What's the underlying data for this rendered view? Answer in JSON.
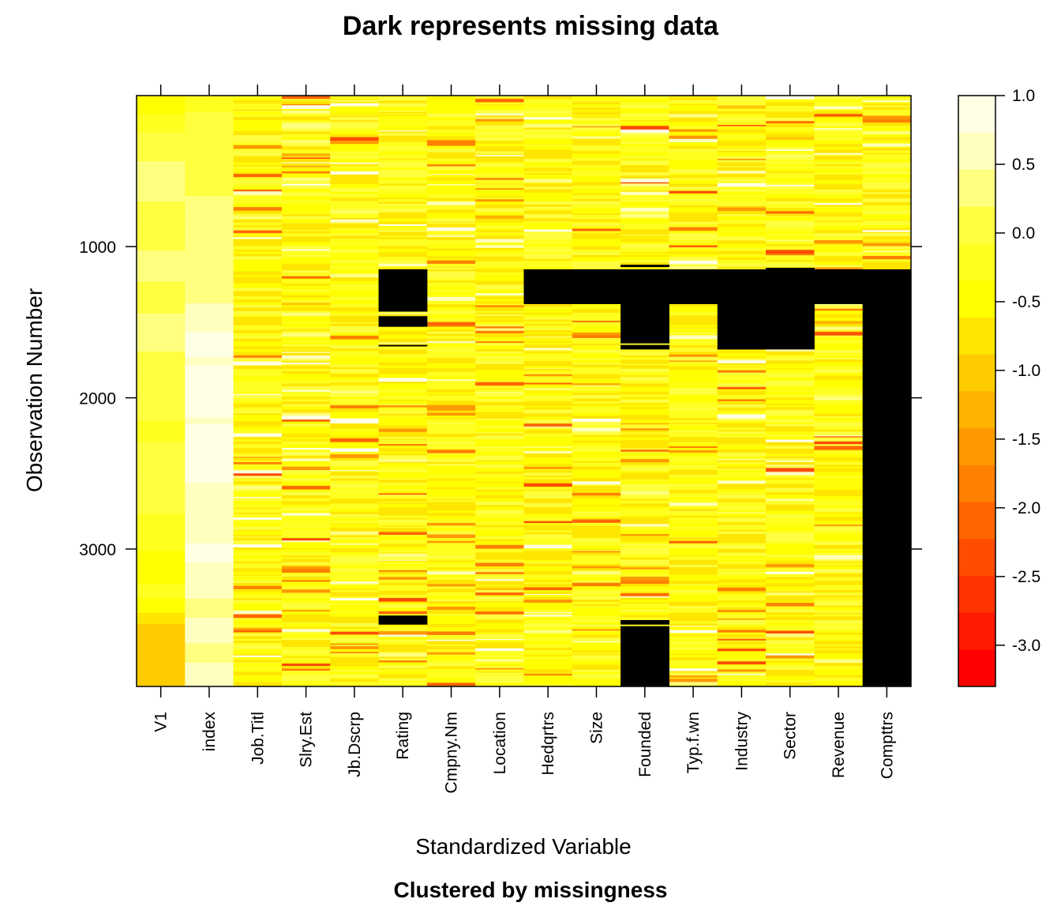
{
  "chart_data": {
    "type": "heatmap",
    "title": "Dark represents missing data",
    "subtitle": "Clustered by missingness",
    "xlabel": "Standardized Variable",
    "ylabel": "Observation Number",
    "variables": [
      "V1",
      "index",
      "Job.Titl",
      "Slry.Est",
      "Jb.Dscrp",
      "Rating",
      "Cmpny.Nm",
      "Location",
      "Hedqrtrs",
      "Size",
      "Founded",
      "Typ.f.wn",
      "Industry",
      "Sector",
      "Revenue",
      "Compttrs"
    ],
    "y_ticks": [
      "1000",
      "2000",
      "3000"
    ],
    "y_tick_values": [
      1000,
      2000,
      3000
    ],
    "ylim": [
      1,
      3909
    ],
    "y_reversed": true,
    "missing_color": "#000000",
    "color_scale": {
      "range": [
        -3.3,
        1.0
      ],
      "ticks": [
        "1.0",
        "0.5",
        "0.0",
        "-0.5",
        "-1.0",
        "-1.5",
        "-2.0",
        "-2.5",
        "-3.0"
      ],
      "tick_values": [
        1.0,
        0.5,
        0.0,
        -0.5,
        -1.0,
        -1.5,
        -2.0,
        -2.5,
        -3.0
      ],
      "colors": [
        "#FF0000",
        "#FF1A00",
        "#FF3300",
        "#FF4D00",
        "#FF6600",
        "#FF8000",
        "#FF9900",
        "#FFB300",
        "#FFCC00",
        "#FFE600",
        "#FFFF00",
        "#FFFF20",
        "#FFFF40",
        "#FFFF80",
        "#FFFFBF",
        "#FFFFE6"
      ]
    },
    "missing_blocks": [
      {
        "variable": "Rating",
        "rows": [
          1150,
          1430
        ]
      },
      {
        "variable": "Rating",
        "rows": [
          1460,
          1530
        ]
      },
      {
        "variable": "Rating",
        "rows": [
          1650,
          1660
        ]
      },
      {
        "variable": "Rating",
        "rows": [
          3440,
          3500
        ]
      },
      {
        "variable": "Hedqrtrs",
        "rows": [
          1150,
          1380
        ]
      },
      {
        "variable": "Size",
        "rows": [
          1150,
          1380
        ]
      },
      {
        "variable": "Founded",
        "rows": [
          1120,
          1135
        ]
      },
      {
        "variable": "Founded",
        "rows": [
          1150,
          1640
        ]
      },
      {
        "variable": "Founded",
        "rows": [
          1650,
          1680
        ]
      },
      {
        "variable": "Founded",
        "rows": [
          3470,
          3500
        ]
      },
      {
        "variable": "Founded",
        "rows": [
          3510,
          3909
        ]
      },
      {
        "variable": "Typ.f.wn",
        "rows": [
          1150,
          1380
        ]
      },
      {
        "variable": "Industry",
        "rows": [
          1150,
          1680
        ]
      },
      {
        "variable": "Sector",
        "rows": [
          1140,
          1680
        ]
      },
      {
        "variable": "Revenue",
        "rows": [
          1150,
          1380
        ]
      },
      {
        "variable": "Compttrs",
        "rows": [
          1150,
          3909
        ]
      }
    ]
  }
}
